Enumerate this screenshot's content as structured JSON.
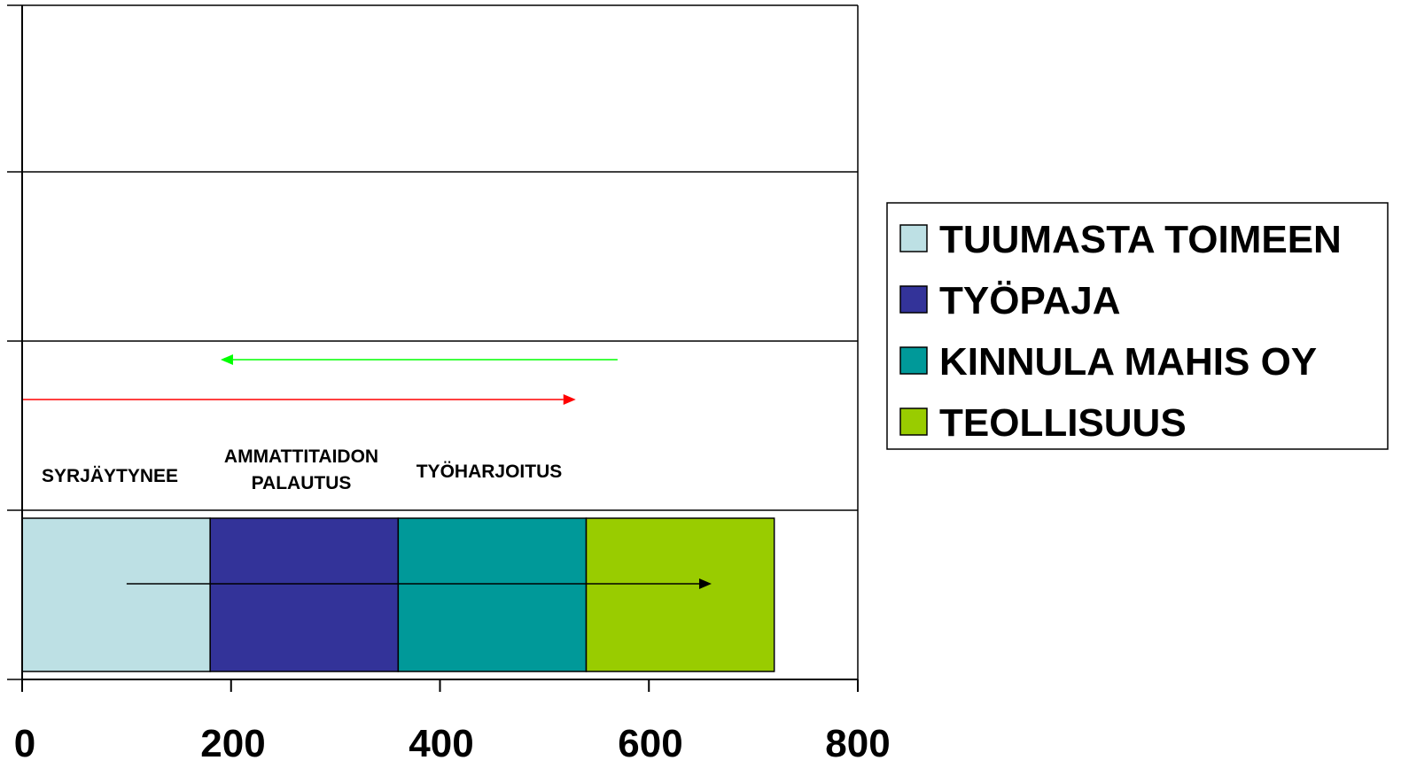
{
  "chart_data": {
    "type": "bar",
    "orientation": "horizontal",
    "stacked": true,
    "categories": [
      ""
    ],
    "series": [
      {
        "name": "TUUMASTA TOIMEEN",
        "values": [
          180
        ],
        "color": "#BDE0E4"
      },
      {
        "name": "TYÖPAJA",
        "values": [
          180
        ],
        "color": "#333399"
      },
      {
        "name": "KINNULA MAHIS OY",
        "values": [
          180
        ],
        "color": "#009999"
      },
      {
        "name": "TEOLLISUUS",
        "values": [
          180
        ],
        "color": "#99CC00"
      }
    ],
    "xlim": [
      0,
      800
    ],
    "xticks": [
      "0",
      "200",
      "400",
      "600",
      "800"
    ],
    "grid": "horizontal",
    "legend_position": "right",
    "annotations": [
      {
        "lines": [
          "SYRJÄYTYNEE"
        ]
      },
      {
        "lines": [
          "AMMATTITAIDON",
          "PALAUTUS"
        ]
      },
      {
        "lines": [
          "TYÖHARJOITUS"
        ]
      }
    ],
    "arrows": [
      {
        "color": "#00FF00",
        "from": 570,
        "to": 190,
        "direction": "left"
      },
      {
        "color": "#FF0000",
        "from": 0,
        "to": 530,
        "direction": "right"
      },
      {
        "color": "#000000",
        "from": 100,
        "to": 660,
        "direction": "right"
      }
    ]
  }
}
